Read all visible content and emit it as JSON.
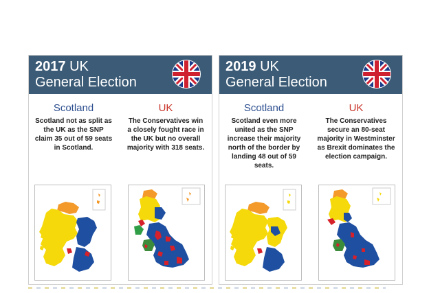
{
  "cards": [
    {
      "year": "2017",
      "title_tail": "UK",
      "title_line2": "General Election",
      "scotland_heading": "Scotland",
      "scotland_text": "Scotland not as split as the UK as the SNP claim 35 out of 59 seats in Scotland.",
      "uk_heading": "UK",
      "uk_text": "The Conservatives win a closely fought race in the UK but no overall majority with 318 seats."
    },
    {
      "year": "2019",
      "title_tail": "UK",
      "title_line2": "General Election",
      "scotland_heading": "Scotland",
      "scotland_text": "Scotland even more united as the SNP increase their majority north of the border by landing 48 out of 59 seats.",
      "uk_heading": "UK",
      "uk_text": "The Conservatives secure an 80-seat majority in Westminster as Brexit dominates the election campaign."
    }
  ],
  "colors": {
    "header": "#3b5b76",
    "snp": "#f5d90a",
    "conservative": "#1f4fa0",
    "labour": "#d6202a",
    "libdem": "#f39a2b",
    "green": "#2f9e47",
    "plaid": "#3c8c3c"
  },
  "icons": [
    "union-jack-flag-icon",
    "scotland-map-icon",
    "uk-map-icon"
  ]
}
